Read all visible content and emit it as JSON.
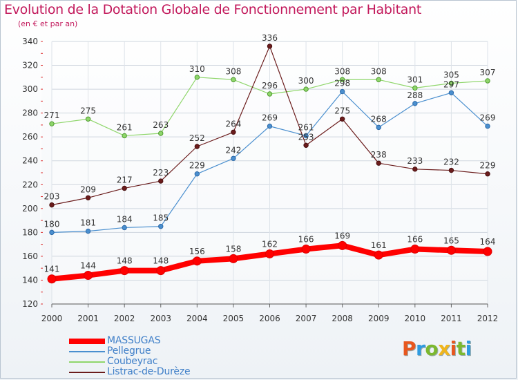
{
  "title": "Evolution de la Dotation Globale de Fonctionnement par Habitant",
  "subtitle": "(en € et par an)",
  "logo": {
    "text": "Proxiti",
    "colors": [
      "#e8571e",
      "#2e9be0",
      "#7cb82f",
      "#f0b51c",
      "#e8571e",
      "#7cb82f",
      "#2e9be0"
    ]
  },
  "chart_data": {
    "type": "line",
    "x": [
      "2000",
      "2001",
      "2002",
      "2003",
      "2004",
      "2005",
      "2006",
      "2007",
      "2008",
      "2009",
      "2010",
      "2011",
      "2012"
    ],
    "ylim": [
      120,
      340
    ],
    "yticks": [
      120,
      140,
      160,
      180,
      200,
      220,
      240,
      260,
      280,
      300,
      320,
      340
    ],
    "grid": true,
    "legend_position": "bottom-left",
    "series": [
      {
        "name": "MASSUGAS",
        "color": "#ff0000",
        "values": [
          141,
          144,
          148,
          148,
          156,
          158,
          162,
          166,
          169,
          161,
          166,
          165,
          164
        ]
      },
      {
        "name": "Pellegrue",
        "color": "#4a8fcf",
        "values": [
          180,
          181,
          184,
          185,
          229,
          242,
          269,
          261,
          298,
          268,
          288,
          297,
          269
        ]
      },
      {
        "name": "Coubeyrac",
        "color": "#8fd66b",
        "values": [
          271,
          275,
          261,
          263,
          310,
          308,
          296,
          300,
          308,
          308,
          301,
          305,
          307
        ]
      },
      {
        "name": "Listrac-de-Durèze",
        "color": "#6b1c1c",
        "values": [
          203,
          209,
          217,
          223,
          252,
          264,
          336,
          253,
          275,
          238,
          233,
          232,
          229
        ]
      }
    ]
  }
}
